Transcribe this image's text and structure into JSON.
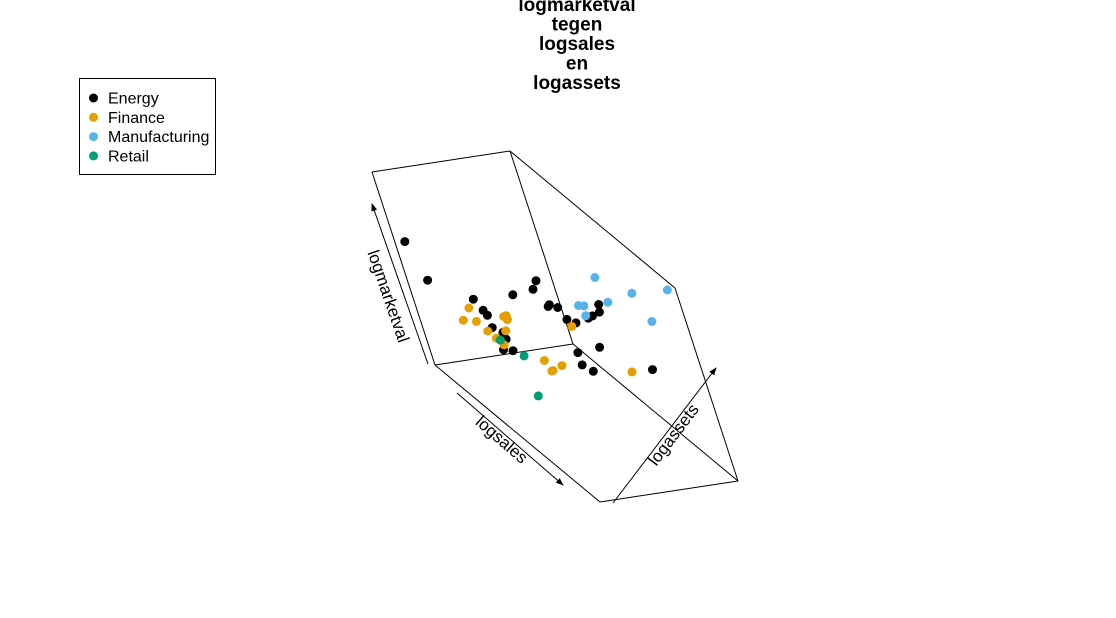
{
  "chart_data": {
    "type": "scatter",
    "title_lines": [
      "logmarketval",
      "tegen",
      "logsales",
      "en",
      "logassets"
    ],
    "axes": {
      "x": "logsales",
      "y": "logassets",
      "z": "logmarketval"
    },
    "box": true,
    "grid": false,
    "legend": {
      "placement": "top-left",
      "entries": [
        {
          "name": "Energy",
          "color": "#000000"
        },
        {
          "name": "Finance",
          "color": "#E69F00"
        },
        {
          "name": "Manufacturing",
          "color": "#56B4E9"
        },
        {
          "name": "Retail",
          "color": "#009E73"
        }
      ]
    },
    "series": [
      {
        "name": "Energy",
        "color": "#000000",
        "points": [
          [
            0.06,
            0.02,
            0.68
          ],
          [
            0.12,
            0.04,
            0.52
          ],
          [
            0.28,
            0.18,
            0.52
          ],
          [
            0.32,
            0.19,
            0.49
          ],
          [
            0.33,
            0.2,
            0.47
          ],
          [
            0.36,
            0.18,
            0.43
          ],
          [
            0.4,
            0.21,
            0.43
          ],
          [
            0.42,
            0.2,
            0.41
          ],
          [
            0.41,
            0.23,
            0.34
          ],
          [
            0.37,
            0.2,
            0.32
          ],
          [
            0.44,
            0.33,
            0.64
          ],
          [
            0.55,
            0.39,
            0.74
          ],
          [
            0.55,
            0.43,
            0.78
          ],
          [
            0.57,
            0.44,
            0.66
          ],
          [
            0.56,
            0.46,
            0.66
          ],
          [
            0.61,
            0.47,
            0.68
          ],
          [
            0.63,
            0.49,
            0.63
          ],
          [
            0.66,
            0.52,
            0.63
          ],
          [
            0.68,
            0.6,
            0.66
          ],
          [
            0.72,
            0.6,
            0.7
          ],
          [
            0.74,
            0.64,
            0.73
          ],
          [
            0.73,
            0.66,
            0.76
          ],
          [
            0.62,
            0.5,
            0.45
          ],
          [
            0.55,
            0.56,
            0.33
          ],
          [
            0.6,
            0.58,
            0.33
          ],
          [
            0.67,
            0.62,
            0.5
          ],
          [
            0.82,
            0.81,
            0.47
          ]
        ]
      },
      {
        "name": "Finance",
        "color": "#E69F00",
        "points": [
          [
            0.28,
            0.13,
            0.48
          ],
          [
            0.2,
            0.13,
            0.36
          ],
          [
            0.27,
            0.16,
            0.4
          ],
          [
            0.29,
            0.2,
            0.36
          ],
          [
            0.33,
            0.21,
            0.35
          ],
          [
            0.34,
            0.24,
            0.32
          ],
          [
            0.38,
            0.25,
            0.42
          ],
          [
            0.39,
            0.26,
            0.5
          ],
          [
            0.4,
            0.27,
            0.49
          ],
          [
            0.4,
            0.27,
            0.51
          ],
          [
            0.5,
            0.35,
            0.34
          ],
          [
            0.52,
            0.37,
            0.3
          ],
          [
            0.51,
            0.37,
            0.29
          ],
          [
            0.56,
            0.41,
            0.35
          ],
          [
            0.64,
            0.5,
            0.6
          ],
          [
            0.74,
            0.73,
            0.41
          ]
        ]
      },
      {
        "name": "Manufacturing",
        "color": "#56B4E9",
        "points": [
          [
            0.68,
            0.56,
            0.73
          ],
          [
            0.7,
            0.58,
            0.74
          ],
          [
            0.7,
            0.57,
            0.69
          ],
          [
            0.8,
            0.67,
            0.82
          ],
          [
            0.76,
            0.67,
            0.92
          ],
          [
            0.88,
            0.79,
            0.91
          ],
          [
            0.91,
            0.84,
            0.78
          ],
          [
            0.98,
            0.96,
            0.98
          ]
        ]
      },
      {
        "name": "Retail",
        "color": "#009E73",
        "points": [
          [
            0.37,
            0.2,
            0.37
          ],
          [
            0.44,
            0.27,
            0.33
          ],
          [
            0.45,
            0.27,
            0.13
          ]
        ]
      }
    ]
  }
}
